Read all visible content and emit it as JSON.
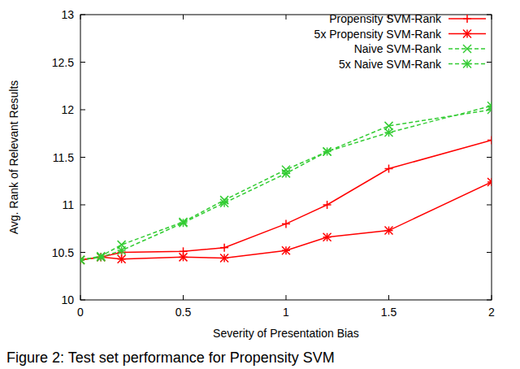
{
  "chart_data": {
    "type": "line",
    "x_label": "Severity of Presentation Bias",
    "y_label": "Avg. Rank of Relevant Results",
    "caption": "Figure 2: Test set performance for Propensity SVM",
    "x": [
      0,
      0.1,
      0.2,
      0.5,
      0.7,
      1,
      1.2,
      1.5,
      2
    ],
    "series": [
      {
        "name": "Propensity SVM-Rank",
        "color": "#ff0000",
        "marker": "plus",
        "line_style": "solid",
        "values": [
          10.42,
          10.45,
          10.5,
          10.51,
          10.55,
          10.8,
          11.0,
          11.38,
          11.68
        ]
      },
      {
        "name": "5x Propensity SVM-Rank",
        "color": "#ff0000",
        "marker": "star",
        "line_style": "solid",
        "values": [
          10.42,
          10.45,
          10.43,
          10.45,
          10.44,
          10.52,
          10.66,
          10.73,
          11.24
        ]
      },
      {
        "name": "Naive SVM-Rank",
        "color": "#33cc33",
        "marker": "cross",
        "line_style": "dashed",
        "values": [
          10.42,
          10.46,
          10.58,
          10.82,
          11.05,
          11.37,
          11.56,
          11.83,
          12.0
        ]
      },
      {
        "name": "5x Naive SVM-Rank",
        "color": "#33cc33",
        "marker": "star",
        "line_style": "dashed",
        "values": [
          10.42,
          10.45,
          10.52,
          10.81,
          11.02,
          11.33,
          11.56,
          11.76,
          12.04
        ]
      }
    ],
    "xlim": [
      0,
      2
    ],
    "xticks": [
      0,
      0.5,
      1,
      1.5,
      2
    ],
    "ylim": [
      10,
      13
    ],
    "yticks": [
      10,
      10.5,
      11,
      11.5,
      12,
      12.5,
      13
    ],
    "grid": false,
    "legend": "top-right"
  }
}
